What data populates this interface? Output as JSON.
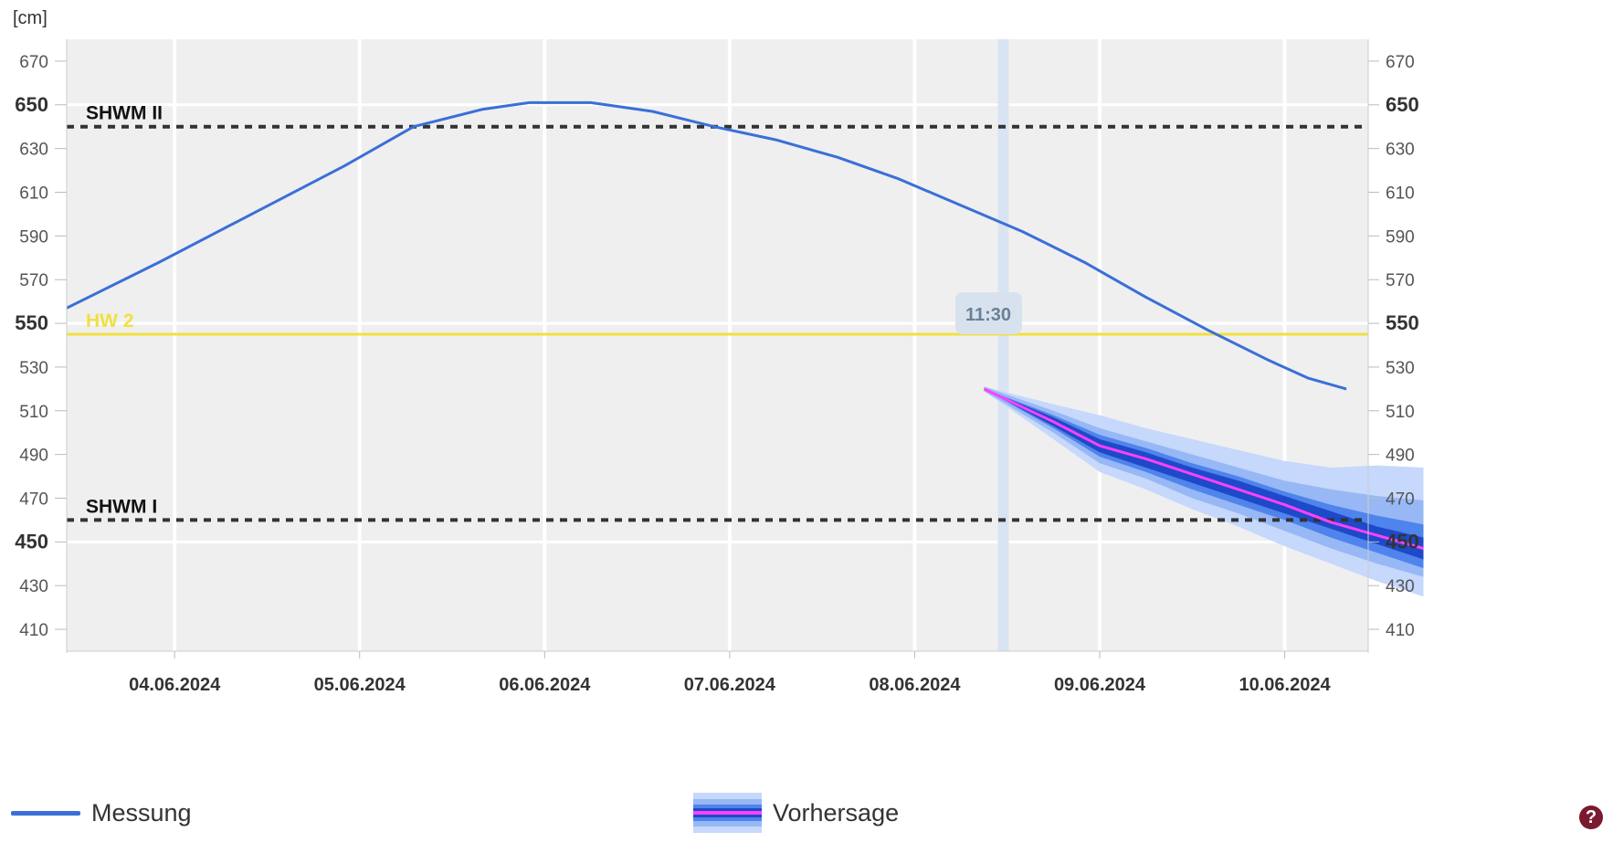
{
  "chart_data": {
    "type": "line",
    "unit_label": "[cm]",
    "ylim": [
      400,
      680
    ],
    "y_ticks": [
      410,
      430,
      450,
      470,
      490,
      510,
      530,
      550,
      570,
      590,
      610,
      630,
      650,
      670
    ],
    "y_ticks_major": [
      450,
      550,
      650
    ],
    "x_range": [
      "2024-06-03T10:00",
      "2024-06-10T10:50"
    ],
    "x_ticks": [
      "04.06.2024",
      "05.06.2024",
      "06.06.2024",
      "07.06.2024",
      "08.06.2024",
      "09.06.2024",
      "10.06.2024"
    ],
    "grid": true,
    "current_time_label": "11:30",
    "current_time": "2024-06-08T11:30",
    "reference_lines": [
      {
        "label": "SHWM II",
        "value": 640,
        "style": "dashed",
        "color": "#333333"
      },
      {
        "label": "HW 2",
        "value": 545,
        "style": "solid",
        "color": "#f0e040"
      },
      {
        "label": "SHWM I",
        "value": 460,
        "style": "dashed",
        "color": "#333333"
      }
    ],
    "series": [
      {
        "name": "Messung",
        "color": "#3a6fd8",
        "points": [
          [
            "2024-06-03T10:00",
            557
          ],
          [
            "2024-06-03T22:00",
            578
          ],
          [
            "2024-06-04T10:00",
            600
          ],
          [
            "2024-06-04T22:00",
            622
          ],
          [
            "2024-06-05T07:00",
            640
          ],
          [
            "2024-06-05T16:00",
            648
          ],
          [
            "2024-06-05T22:00",
            651
          ],
          [
            "2024-06-06T06:00",
            651
          ],
          [
            "2024-06-06T14:00",
            647
          ],
          [
            "2024-06-06T22:00",
            640
          ],
          [
            "2024-06-07T06:00",
            634
          ],
          [
            "2024-06-07T14:00",
            626
          ],
          [
            "2024-06-07T22:00",
            616
          ],
          [
            "2024-06-08T06:00",
            604
          ],
          [
            "2024-06-08T14:00",
            592
          ],
          [
            "2024-06-08T22:00",
            578
          ],
          [
            "2024-06-09T06:00",
            562
          ],
          [
            "2024-06-09T14:00",
            547
          ],
          [
            "2024-06-09T22:00",
            533
          ],
          [
            "2024-06-10T03:00",
            525
          ],
          [
            "2024-06-10T08:00",
            520
          ]
        ]
      },
      {
        "name": "Vorhersage",
        "color": "#ff40ff",
        "points": [
          [
            "2024-06-08T09:00",
            520
          ],
          [
            "2024-06-08T18:00",
            505
          ],
          [
            "2024-06-09T00:00",
            494
          ],
          [
            "2024-06-09T06:00",
            488
          ],
          [
            "2024-06-09T12:00",
            481
          ],
          [
            "2024-06-09T18:00",
            474
          ],
          [
            "2024-06-10T00:00",
            467
          ],
          [
            "2024-06-10T06:00",
            459
          ],
          [
            "2024-06-10T12:00",
            453
          ],
          [
            "2024-06-10T18:00",
            447
          ]
        ],
        "bands": [
          {
            "lower": [
              519,
              497,
              482,
              474,
              465,
              457,
              448,
              440,
              432,
              425
            ],
            "upper": [
              521,
              513,
              508,
              502,
              497,
              492,
              487,
              484,
              485,
              484
            ],
            "color": "#c6d8fb"
          },
          {
            "lower": [
              519,
              500,
              486,
              479,
              470,
              463,
              455,
              447,
              440,
              434
            ],
            "upper": [
              521,
              510,
              502,
              496,
              490,
              484,
              478,
              474,
              471,
              469
            ],
            "color": "#97b8f5"
          },
          {
            "lower": [
              520,
              502,
              489,
              482,
              474,
              467,
              460,
              452,
              445,
              438
            ],
            "upper": [
              520,
              508,
              499,
              493,
              486,
              480,
              473,
              467,
              462,
              458
            ],
            "color": "#4f84ec"
          },
          {
            "lower": [
              520,
              503,
              491,
              484,
              477,
              470,
              463,
              456,
              449,
              442
            ],
            "upper": [
              520,
              507,
              497,
              491,
              484,
              478,
              471,
              464,
              457,
              452
            ],
            "color": "#1e49c8"
          }
        ]
      }
    ]
  },
  "legend": {
    "measurement_label": "Messung",
    "forecast_label": "Vorhersage",
    "measurement_color": "#3a6fd8"
  },
  "help_icon": "question-mark-icon"
}
